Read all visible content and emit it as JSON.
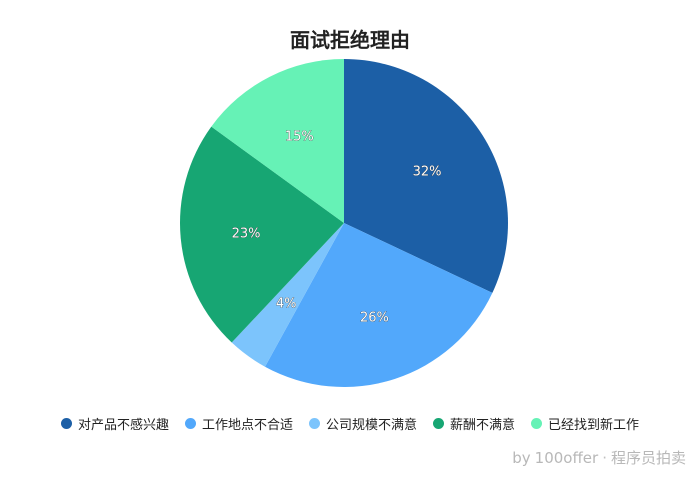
{
  "chart_data": {
    "type": "pie",
    "title": "面试拒绝理由",
    "categories": [
      "对产品不感兴趣",
      "工作地点不合适",
      "公司规模不满意",
      "薪酬不满意",
      "已经找到新工作"
    ],
    "values": [
      32,
      26,
      4,
      23,
      15
    ],
    "labels": [
      "32%",
      "26%",
      "4%",
      "23%",
      "15%"
    ],
    "colors": [
      "#1c5fa6",
      "#52a8fb",
      "#7cc4fc",
      "#17a673",
      "#66f2b6"
    ],
    "legend_position": "bottom"
  },
  "watermark": {
    "prefix": "by",
    "brand": "100offer",
    "separator": "·",
    "suffix": "程序员拍卖"
  }
}
